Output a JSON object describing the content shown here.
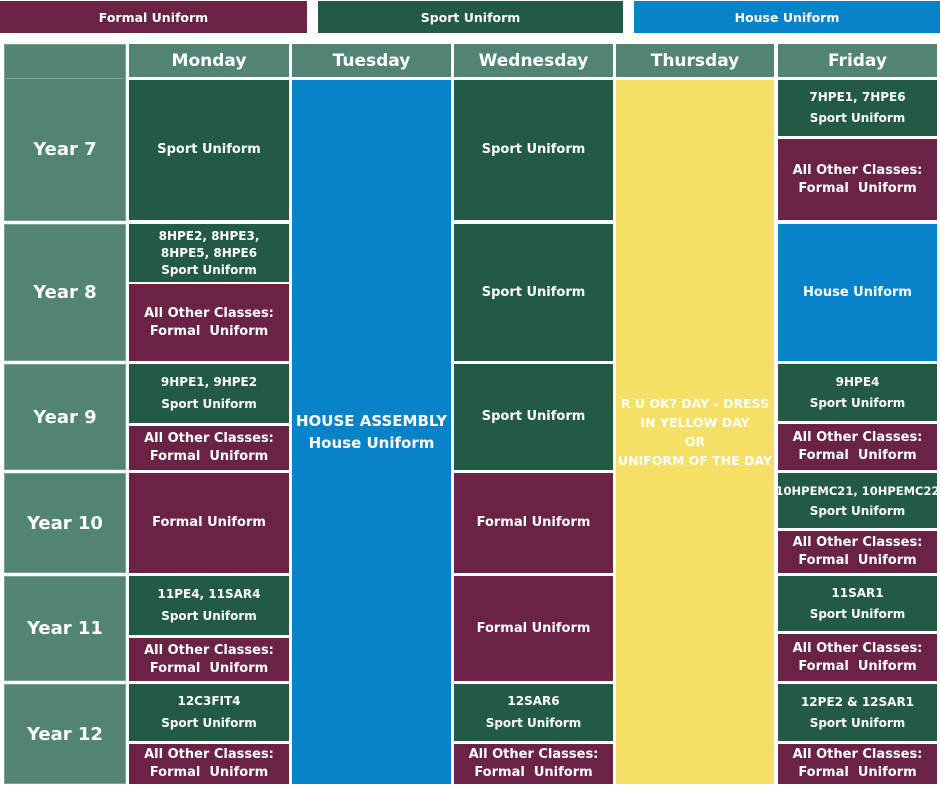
{
  "legend": {
    "formal": "Formal Uniform",
    "sport": "Sport Uniform",
    "house": "House Uniform"
  },
  "days": [
    "Monday",
    "Tuesday",
    "Wednesday",
    "Thursday",
    "Friday"
  ],
  "years": [
    "Year 7",
    "Year 8",
    "Year 9",
    "Year 10",
    "Year 11",
    "Year 12"
  ],
  "text": {
    "sport": "Sport Uniform",
    "formal": "Formal Uniform",
    "house": "House Uniform",
    "all_other": "All Other Classes:",
    "formal_spaced": "Formal  Uniform"
  },
  "monday": {
    "y8_classes": "8HPE2, 8HPE3, 8HPE5, 8HPE6",
    "y9_classes": "9HPE1, 9HPE2",
    "y11_classes": "11PE4, 11SAR4",
    "y12_classes": "12C3FIT4"
  },
  "tuesday": {
    "line1": "HOUSE ASSEMBLY",
    "line2": "House Uniform"
  },
  "wednesday": {
    "y12_classes": "12SAR6"
  },
  "thursday": {
    "line1": "R U OK? DAY - DRESS",
    "line2": "IN YELLOW DAY",
    "line3": "OR",
    "line4": "UNIFORM OF THE DAY"
  },
  "friday": {
    "y7_classes": "7HPE1, 7HPE6",
    "y9_classes": "9HPE4",
    "y10_classes": "10HPEMC21, 10HPEMC22",
    "y11_classes": "11SAR1",
    "y12_classes": "12PE2 & 12SAR1"
  },
  "colors": {
    "formal": "#6b2345",
    "sport": "#225a44",
    "house": "#0784c9",
    "header": "#518474",
    "thursday": "#f5e067"
  }
}
